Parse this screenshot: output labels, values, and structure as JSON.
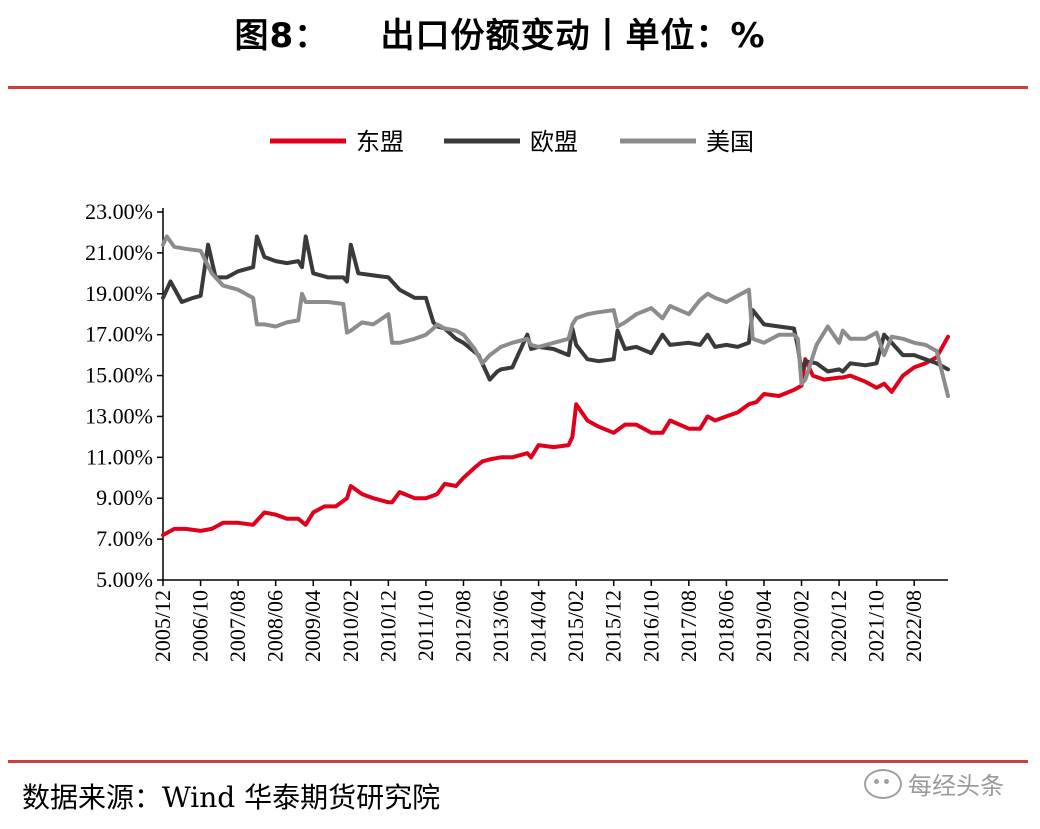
{
  "title": "图8：    出口份额变动丨单位：%",
  "source": "数据来源：Wind 华泰期货研究院",
  "watermark": "每经头条",
  "chart_data": {
    "type": "line",
    "title": "出口份额变动",
    "ylim": [
      5,
      23
    ],
    "yticks": [
      "23.00%",
      "21.00%",
      "19.00%",
      "17.00%",
      "15.00%",
      "13.00%",
      "11.00%",
      "9.00%",
      "7.00%",
      "5.00%"
    ],
    "ytick_values": [
      23,
      21,
      19,
      17,
      15,
      13,
      11,
      9,
      7,
      5
    ],
    "xticks": [
      "2005/12",
      "2006/10",
      "2007/08",
      "2008/06",
      "2009/04",
      "2010/02",
      "2010/12",
      "2011/10",
      "2012/08",
      "2013/06",
      "2014/04",
      "2015/02",
      "2015/12",
      "2016/10",
      "2017/08",
      "2018/06",
      "2019/04",
      "2020/02",
      "2020/12",
      "2021/10",
      "2022/08"
    ],
    "xrange": [
      "2005/12",
      "2023/05"
    ],
    "legend_position": "top",
    "grid": false,
    "series": [
      {
        "name": "东盟",
        "color": "#e0001b",
        "x": [
          "2005/12",
          "2006/03",
          "2006/06",
          "2006/10",
          "2007/01",
          "2007/04",
          "2007/08",
          "2007/12",
          "2008/03",
          "2008/06",
          "2008/09",
          "2008/12",
          "2009/02",
          "2009/04",
          "2009/07",
          "2009/10",
          "2010/01",
          "2010/02",
          "2010/05",
          "2010/08",
          "2010/12",
          "2011/01",
          "2011/03",
          "2011/07",
          "2011/10",
          "2012/01",
          "2012/03",
          "2012/06",
          "2012/08",
          "2012/11",
          "2013/01",
          "2013/03",
          "2013/06",
          "2013/09",
          "2014/01",
          "2014/02",
          "2014/04",
          "2014/08",
          "2014/12",
          "2015/01",
          "2015/02",
          "2015/05",
          "2015/08",
          "2015/12",
          "2016/03",
          "2016/06",
          "2016/10",
          "2017/01",
          "2017/03",
          "2017/08",
          "2017/11",
          "2018/01",
          "2018/03",
          "2018/06",
          "2018/09",
          "2018/12",
          "2019/02",
          "2019/04",
          "2019/08",
          "2019/12",
          "2020/02",
          "2020/03",
          "2020/05",
          "2020/08",
          "2020/12",
          "2021/01",
          "2021/03",
          "2021/07",
          "2021/10",
          "2021/12",
          "2022/02",
          "2022/05",
          "2022/08",
          "2022/11",
          "2023/02",
          "2023/05"
        ],
        "values": [
          7.2,
          7.5,
          7.5,
          7.4,
          7.5,
          7.8,
          7.8,
          7.7,
          8.3,
          8.2,
          8.0,
          8.0,
          7.7,
          8.3,
          8.6,
          8.6,
          9.0,
          9.6,
          9.2,
          9.0,
          8.8,
          8.8,
          9.3,
          9.0,
          9.0,
          9.2,
          9.7,
          9.6,
          10.0,
          10.5,
          10.8,
          10.9,
          11.0,
          11.0,
          11.2,
          11.0,
          11.6,
          11.5,
          11.6,
          12.0,
          13.6,
          12.8,
          12.5,
          12.2,
          12.6,
          12.6,
          12.2,
          12.2,
          12.8,
          12.4,
          12.4,
          13.0,
          12.8,
          13.0,
          13.2,
          13.6,
          13.7,
          14.1,
          14.0,
          14.3,
          14.5,
          15.8,
          15.0,
          14.8,
          14.9,
          14.9,
          15.0,
          14.7,
          14.4,
          14.6,
          14.2,
          15.0,
          15.4,
          15.6,
          15.9,
          16.9
        ]
      },
      {
        "name": "欧盟",
        "color": "#3a3a3a",
        "x": [
          "2005/12",
          "2006/02",
          "2006/05",
          "2006/08",
          "2006/10",
          "2006/12",
          "2007/02",
          "2007/05",
          "2007/08",
          "2007/12",
          "2008/01",
          "2008/03",
          "2008/06",
          "2008/09",
          "2008/12",
          "2009/01",
          "2009/02",
          "2009/04",
          "2009/08",
          "2009/12",
          "2010/01",
          "2010/02",
          "2010/04",
          "2010/08",
          "2010/12",
          "2011/03",
          "2011/07",
          "2011/10",
          "2011/12",
          "2012/01",
          "2012/03",
          "2012/06",
          "2012/08",
          "2012/12",
          "2013/03",
          "2013/05",
          "2013/06",
          "2013/09",
          "2014/01",
          "2014/02",
          "2014/04",
          "2014/08",
          "2014/12",
          "2015/01",
          "2015/02",
          "2015/05",
          "2015/08",
          "2015/12",
          "2016/01",
          "2016/03",
          "2016/06",
          "2016/10",
          "2017/01",
          "2017/03",
          "2017/08",
          "2017/11",
          "2018/01",
          "2018/03",
          "2018/06",
          "2018/09",
          "2018/12",
          "2019/01",
          "2019/04",
          "2019/08",
          "2019/12",
          "2020/01",
          "2020/02",
          "2020/03",
          "2020/06",
          "2020/09",
          "2020/12",
          "2021/01",
          "2021/03",
          "2021/07",
          "2021/10",
          "2021/12",
          "2022/02",
          "2022/05",
          "2022/08",
          "2022/11",
          "2023/02",
          "2023/05"
        ],
        "values": [
          18.8,
          19.6,
          18.6,
          18.8,
          18.9,
          21.4,
          19.8,
          19.8,
          20.1,
          20.3,
          21.8,
          20.8,
          20.6,
          20.5,
          20.6,
          20.3,
          21.8,
          20.0,
          19.8,
          19.8,
          19.6,
          21.4,
          20.0,
          19.9,
          19.8,
          19.2,
          18.8,
          18.8,
          17.6,
          17.4,
          17.3,
          16.8,
          16.6,
          16.0,
          14.8,
          15.2,
          15.3,
          15.4,
          17.0,
          16.3,
          16.4,
          16.3,
          16.0,
          17.3,
          16.5,
          15.8,
          15.7,
          15.8,
          17.2,
          16.3,
          16.4,
          16.1,
          17.0,
          16.5,
          16.6,
          16.5,
          17.0,
          16.4,
          16.5,
          16.4,
          16.6,
          18.2,
          17.5,
          17.4,
          17.3,
          16.4,
          15.2,
          15.7,
          15.6,
          15.2,
          15.3,
          15.2,
          15.6,
          15.5,
          15.6,
          17.0,
          16.6,
          16.0,
          16.0,
          15.8,
          15.6,
          15.3
        ]
      },
      {
        "name": "美国",
        "color": "#8c8c8c",
        "x": [
          "2005/12",
          "2006/01",
          "2006/03",
          "2006/06",
          "2006/10",
          "2007/01",
          "2007/04",
          "2007/08",
          "2007/12",
          "2008/01",
          "2008/03",
          "2008/06",
          "2008/09",
          "2008/12",
          "2009/01",
          "2009/02",
          "2009/04",
          "2009/08",
          "2009/12",
          "2010/01",
          "2010/02",
          "2010/05",
          "2010/08",
          "2010/12",
          "2011/01",
          "2011/03",
          "2011/07",
          "2011/10",
          "2011/12",
          "2012/01",
          "2012/03",
          "2012/06",
          "2012/08",
          "2012/11",
          "2013/01",
          "2013/03",
          "2013/06",
          "2013/09",
          "2014/01",
          "2014/02",
          "2014/04",
          "2014/08",
          "2014/12",
          "2015/01",
          "2015/02",
          "2015/05",
          "2015/08",
          "2015/12",
          "2016/01",
          "2016/03",
          "2016/06",
          "2016/10",
          "2017/01",
          "2017/03",
          "2017/08",
          "2017/11",
          "2018/01",
          "2018/03",
          "2018/06",
          "2018/09",
          "2018/12",
          "2019/01",
          "2019/04",
          "2019/08",
          "2019/12",
          "2020/01",
          "2020/02",
          "2020/03",
          "2020/06",
          "2020/09",
          "2020/12",
          "2021/01",
          "2021/03",
          "2021/07",
          "2021/10",
          "2021/12",
          "2022/02",
          "2022/05",
          "2022/08",
          "2022/11",
          "2023/02",
          "2023/05"
        ],
        "values": [
          21.4,
          21.8,
          21.3,
          21.2,
          21.1,
          20.0,
          19.4,
          19.2,
          18.8,
          17.5,
          17.5,
          17.4,
          17.6,
          17.7,
          19.0,
          18.6,
          18.6,
          18.6,
          18.5,
          17.1,
          17.2,
          17.6,
          17.5,
          18.0,
          16.6,
          16.6,
          16.8,
          17.0,
          17.3,
          17.5,
          17.3,
          17.2,
          17.0,
          16.3,
          15.6,
          16.0,
          16.4,
          16.6,
          16.8,
          16.5,
          16.4,
          16.6,
          16.8,
          17.5,
          17.8,
          18.0,
          18.1,
          18.2,
          17.4,
          17.6,
          18.0,
          18.3,
          17.8,
          18.4,
          18.0,
          18.7,
          19.0,
          18.8,
          18.6,
          18.9,
          19.2,
          16.8,
          16.6,
          17.0,
          17.0,
          16.8,
          14.6,
          14.8,
          16.5,
          17.4,
          16.6,
          17.2,
          16.8,
          16.8,
          17.1,
          16.0,
          16.9,
          16.8,
          16.6,
          16.5,
          16.2,
          14.0
        ]
      }
    ]
  }
}
